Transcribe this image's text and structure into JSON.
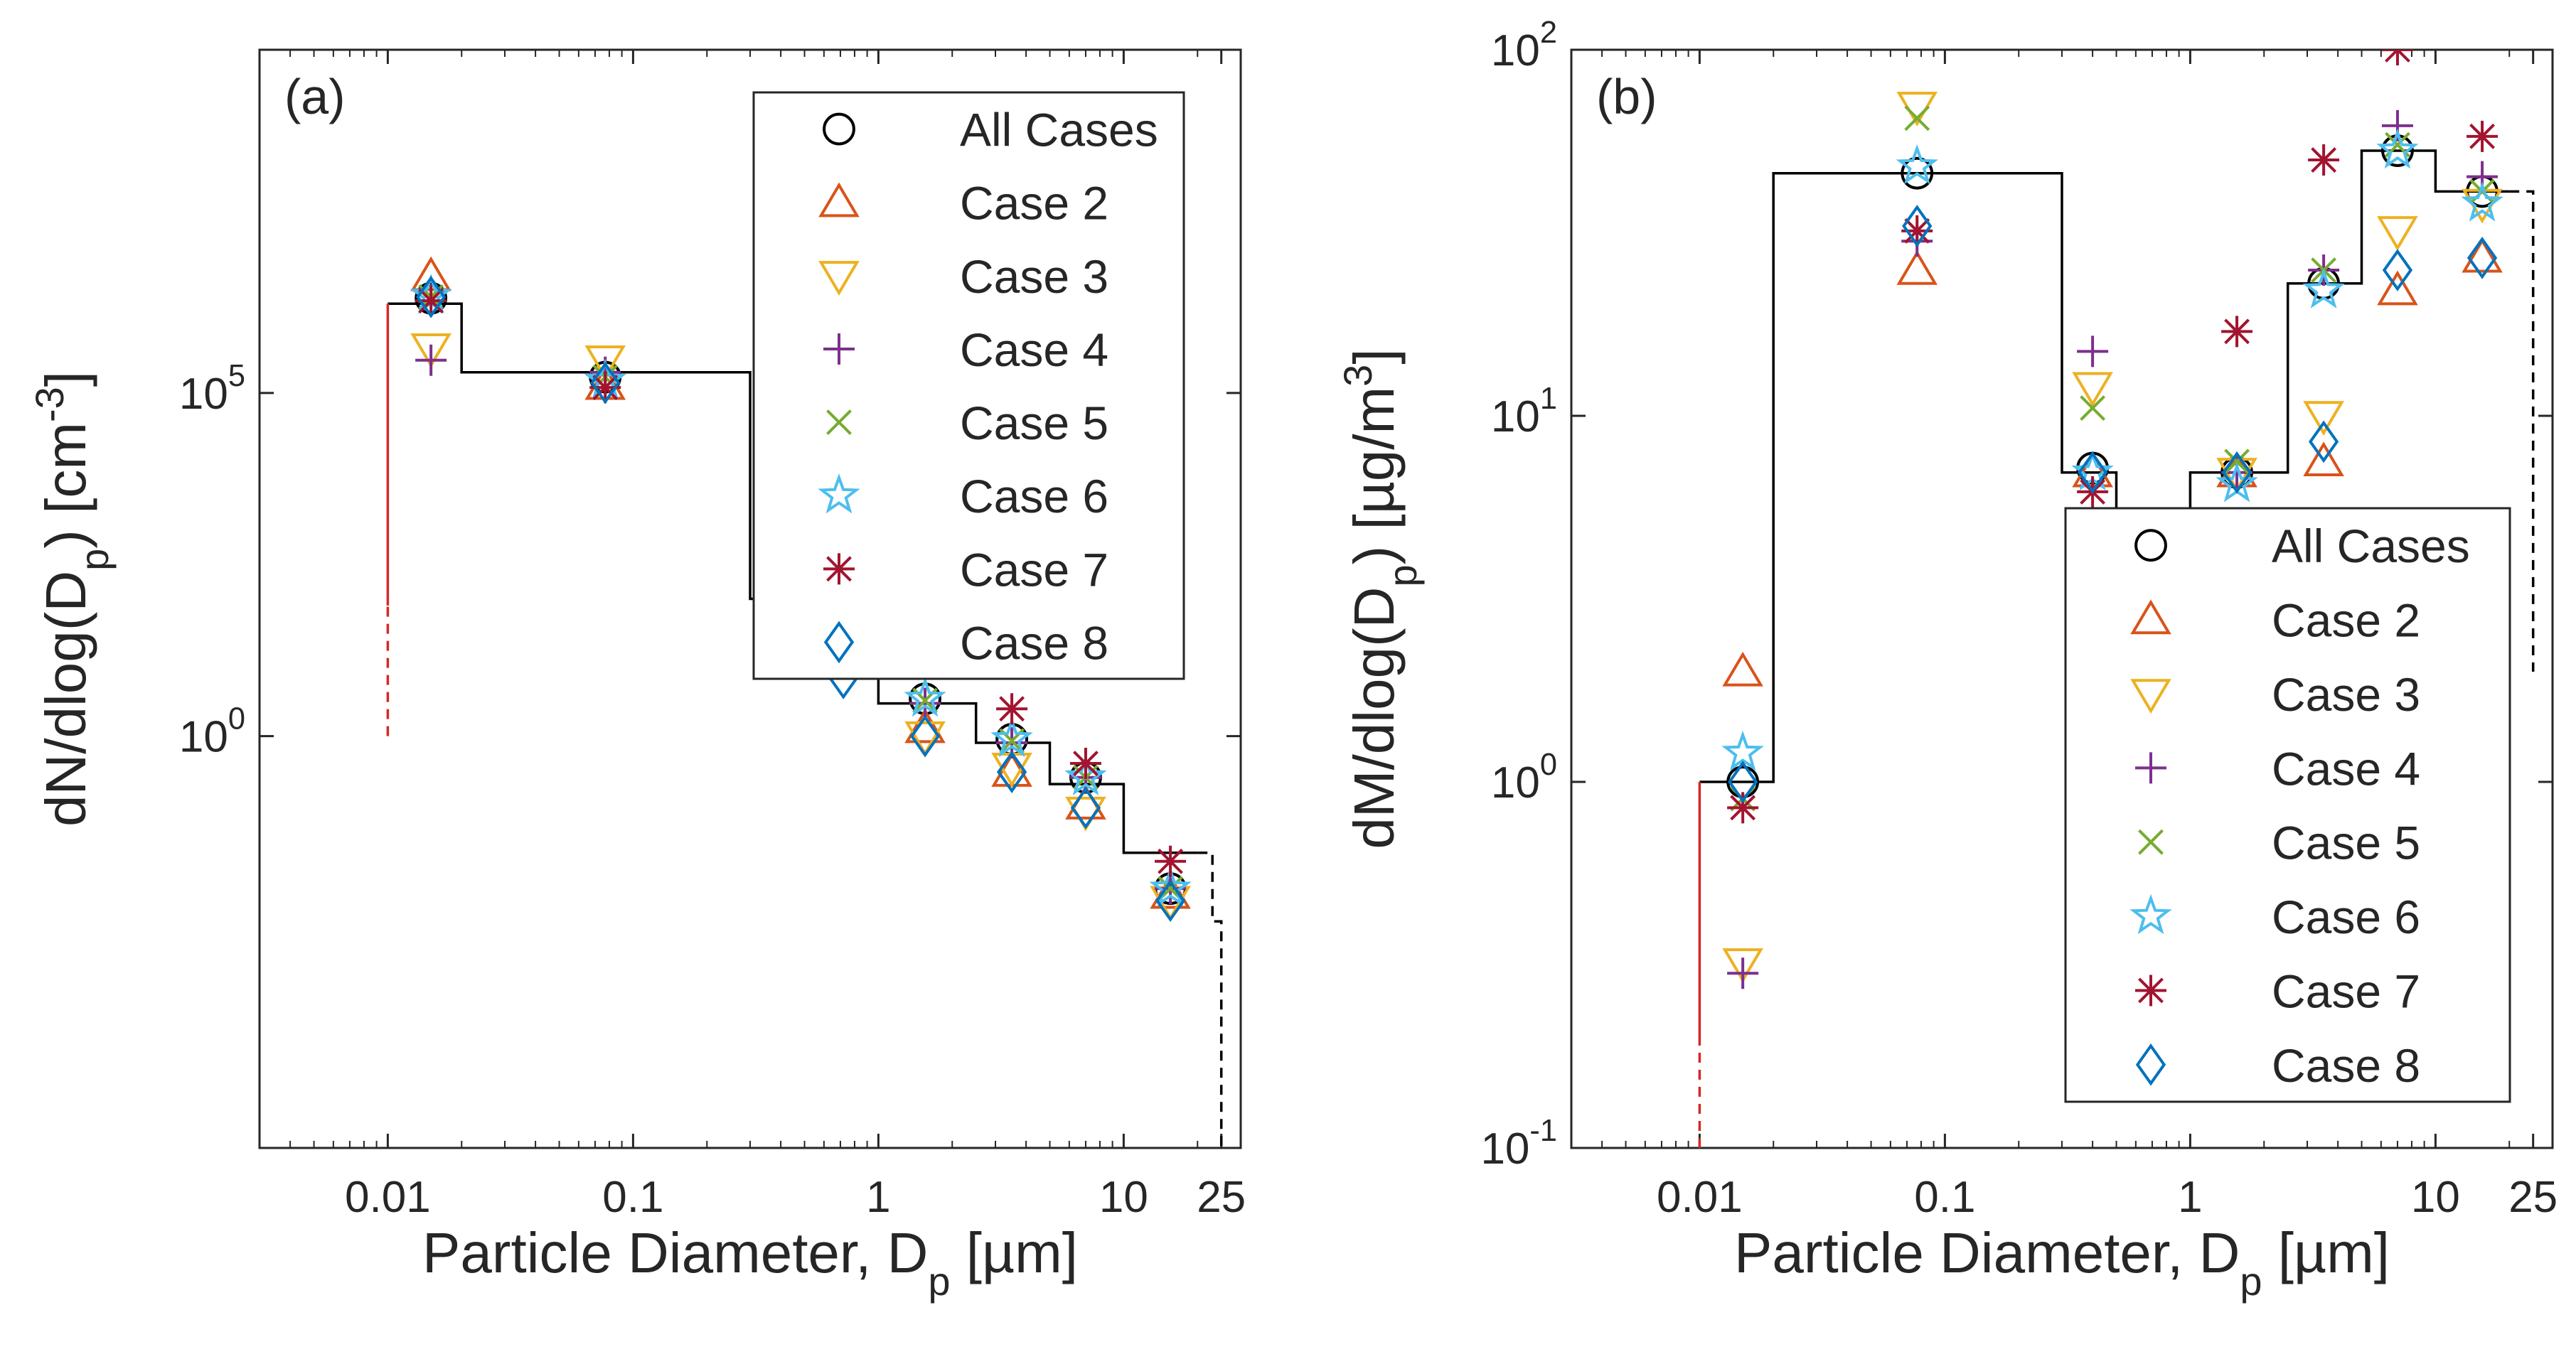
{
  "chart_data": [
    {
      "type": "scatter",
      "panel_label": "(a)",
      "xscale": "log",
      "yscale": "log",
      "xlim": [
        0.003,
        30
      ],
      "ylim": [
        1e-06,
        10000000000.0
      ],
      "xticks": [
        {
          "value": 0.01,
          "label": "0.01"
        },
        {
          "value": 0.1,
          "label": "0.1"
        },
        {
          "value": 1,
          "label": "1"
        },
        {
          "value": 10,
          "label": "10"
        },
        {
          "value": 25,
          "label": "25"
        }
      ],
      "yticks": [
        {
          "value": 1,
          "base": "10",
          "exp": "0"
        },
        {
          "value": 100000,
          "base": "10",
          "exp": "5"
        }
      ],
      "xlabel": {
        "text": "Particle Diameter, D",
        "sub": "p",
        "after": " [µm]"
      },
      "ylabel": {
        "text": "dN/dlog(D",
        "sub": "p",
        "mid": ") [cm",
        "sup": "-3",
        "after": "]"
      },
      "legend_position": "top-right",
      "step_line": {
        "color": "#000000",
        "points": [
          [
            0.01,
            2000000
          ],
          [
            0.02,
            2000000
          ],
          [
            0.02,
            200000
          ],
          [
            0.3,
            200000
          ],
          [
            0.3,
            100
          ],
          [
            0.5,
            100
          ],
          [
            0.5,
            10
          ],
          [
            1,
            10
          ],
          [
            1,
            3
          ],
          [
            2.5,
            3
          ],
          [
            2.5,
            0.8
          ],
          [
            5,
            0.8
          ],
          [
            5,
            0.2
          ],
          [
            10,
            0.2
          ],
          [
            10,
            0.02
          ],
          [
            20,
            0.02
          ]
        ],
        "extension_dashed": [
          [
            20,
            0.02
          ],
          [
            23,
            0.02
          ],
          [
            23,
            0.002
          ],
          [
            25,
            0.002
          ],
          [
            25,
            1e-06
          ]
        ]
      },
      "low_edge": {
        "color": "#d62728",
        "x": 0.01,
        "solid": [
          80,
          2000000
        ],
        "dashed": [
          1,
          80
        ]
      },
      "series": [
        {
          "name": "All Cases",
          "marker": "circle",
          "color": "#000000",
          "x": [
            0.015,
            0.077,
            0.72,
            1.55,
            3.5,
            7,
            15.5
          ],
          "y": [
            2400000,
            170000,
            25,
            3.5,
            0.9,
            0.25,
            0.006
          ]
        },
        {
          "name": "Case 2",
          "marker": "triangle-up",
          "color": "#d95319",
          "x": [
            0.015,
            0.077,
            0.72,
            1.55,
            3.5,
            7,
            15.5
          ],
          "y": [
            5000000,
            130000,
            18,
            1.3,
            0.3,
            0.1,
            0.005
          ]
        },
        {
          "name": "Case 3",
          "marker": "triangle-down",
          "color": "#edb120",
          "x": [
            0.015,
            0.077,
            0.72,
            1.55,
            3.5,
            7,
            15.5
          ],
          "y": [
            450000,
            300000,
            20,
            1.0,
            0.35,
            0.08,
            0.004
          ]
        },
        {
          "name": "Case 4",
          "marker": "plus",
          "color": "#7e2f8e",
          "x": [
            0.015,
            0.077,
            0.72,
            1.55,
            3.5,
            7,
            15.5
          ],
          "y": [
            300000,
            200000,
            30,
            3.0,
            0.8,
            0.25,
            0.006
          ]
        },
        {
          "name": "Case 5",
          "marker": "x",
          "color": "#77ac30",
          "x": [
            0.015,
            0.077,
            0.72,
            1.55,
            3.5,
            7,
            15.5
          ],
          "y": [
            2500000,
            170000,
            25,
            3.3,
            0.85,
            0.25,
            0.006
          ]
        },
        {
          "name": "Case 6",
          "marker": "pentagram",
          "color": "#4dbeee",
          "x": [
            0.015,
            0.077,
            0.72,
            1.55,
            3.5,
            7,
            15.5
          ],
          "y": [
            2600000,
            150000,
            25,
            3.5,
            0.9,
            0.25,
            0.006
          ]
        },
        {
          "name": "Case 7",
          "marker": "asterisk",
          "color": "#a2142f",
          "x": [
            0.015,
            0.077,
            0.72,
            1.55,
            3.5,
            7,
            15.5
          ],
          "y": [
            2200000,
            120000,
            60,
            12,
            2.5,
            0.4,
            0.015
          ]
        },
        {
          "name": "Case 8",
          "marker": "diamond",
          "color": "#0072bd",
          "x": [
            0.015,
            0.077,
            0.72,
            1.55,
            3.5,
            7,
            15.5
          ],
          "y": [
            2500000,
            140000,
            7,
            1.0,
            0.3,
            0.09,
            0.004
          ]
        }
      ]
    },
    {
      "type": "scatter",
      "panel_label": "(b)",
      "xscale": "log",
      "yscale": "log",
      "xlim": [
        0.003,
        30
      ],
      "ylim": [
        0.1,
        100
      ],
      "xticks": [
        {
          "value": 0.01,
          "label": "0.01"
        },
        {
          "value": 0.1,
          "label": "0.1"
        },
        {
          "value": 1,
          "label": "1"
        },
        {
          "value": 10,
          "label": "10"
        },
        {
          "value": 25,
          "label": "25"
        }
      ],
      "yticks": [
        {
          "value": 0.1,
          "base": "10",
          "exp": "-1"
        },
        {
          "value": 1,
          "base": "10",
          "exp": "0"
        },
        {
          "value": 10,
          "base": "10",
          "exp": "1"
        },
        {
          "value": 100,
          "base": "10",
          "exp": "2"
        }
      ],
      "xlabel": {
        "text": "Particle Diameter, D",
        "sub": "p",
        "after": " [µm]"
      },
      "ylabel": {
        "text": "dM/dlog(D",
        "sub": "p",
        "mid": ") [µg/m",
        "sup": "3",
        "after": "]"
      },
      "legend_position": "bottom-right",
      "step_line": {
        "color": "#000000",
        "points": [
          [
            0.01,
            1
          ],
          [
            0.02,
            1
          ],
          [
            0.02,
            46
          ],
          [
            0.3,
            46
          ],
          [
            0.3,
            7
          ],
          [
            0.5,
            7
          ],
          [
            0.5,
            5
          ],
          [
            1,
            5
          ],
          [
            1,
            7
          ],
          [
            2.5,
            7
          ],
          [
            2.5,
            23
          ],
          [
            5,
            23
          ],
          [
            5,
            53
          ],
          [
            10,
            53
          ],
          [
            10,
            41
          ],
          [
            20,
            41
          ]
        ],
        "extension_dashed": [
          [
            20,
            41
          ],
          [
            25,
            41
          ],
          [
            25,
            2
          ]
        ]
      },
      "low_edge": {
        "color": "#d62728",
        "x": 0.01,
        "solid": [
          0.2,
          1
        ],
        "dashed": [
          0.1,
          0.2
        ]
      },
      "series": [
        {
          "name": "All Cases",
          "marker": "circle",
          "color": "#000000",
          "x": [
            0.015,
            0.077,
            0.4,
            1.55,
            3.5,
            7,
            15.5
          ],
          "y": [
            1.0,
            46,
            7.2,
            7.0,
            23,
            53,
            41
          ]
        },
        {
          "name": "Case 2",
          "marker": "triangle-up",
          "color": "#d95319",
          "x": [
            0.015,
            0.077,
            0.4,
            1.55,
            3.5,
            7,
            15.5
          ],
          "y": [
            2.0,
            25,
            7.0,
            7.0,
            7.5,
            22,
            27
          ]
        },
        {
          "name": "Case 3",
          "marker": "triangle-down",
          "color": "#edb120",
          "x": [
            0.015,
            0.077,
            0.4,
            1.55,
            3.5,
            7,
            15.5
          ],
          "y": [
            0.32,
            70,
            12,
            7.0,
            10,
            32,
            38
          ]
        },
        {
          "name": "Case 4",
          "marker": "plus",
          "color": "#7e2f8e",
          "x": [
            0.015,
            0.077,
            0.4,
            1.55,
            3.5,
            7,
            15.5
          ],
          "y": [
            0.3,
            30,
            15,
            7.0,
            25,
            62,
            45
          ]
        },
        {
          "name": "Case 5",
          "marker": "x",
          "color": "#77ac30",
          "x": [
            0.015,
            0.077,
            0.4,
            1.55,
            3.5,
            7,
            15.5
          ],
          "y": [
            0.9,
            65,
            10.5,
            7.5,
            25,
            55,
            41
          ]
        },
        {
          "name": "Case 6",
          "marker": "pentagram",
          "color": "#4dbeee",
          "x": [
            0.015,
            0.077,
            0.4,
            1.55,
            3.5,
            7,
            15.5
          ],
          "y": [
            1.2,
            48,
            7.0,
            6.5,
            22,
            53,
            38
          ]
        },
        {
          "name": "Case 7",
          "marker": "asterisk",
          "color": "#a2142f",
          "x": [
            0.015,
            0.077,
            0.4,
            1.55,
            3.5,
            7,
            15.5
          ],
          "y": [
            0.85,
            32,
            6.2,
            17,
            50,
            100,
            58
          ]
        },
        {
          "name": "Case 8",
          "marker": "diamond",
          "color": "#0072bd",
          "x": [
            0.015,
            0.077,
            0.4,
            1.55,
            3.5,
            7,
            15.5
          ],
          "y": [
            1.0,
            33,
            7.0,
            7.0,
            8.5,
            25,
            27
          ]
        }
      ]
    }
  ]
}
